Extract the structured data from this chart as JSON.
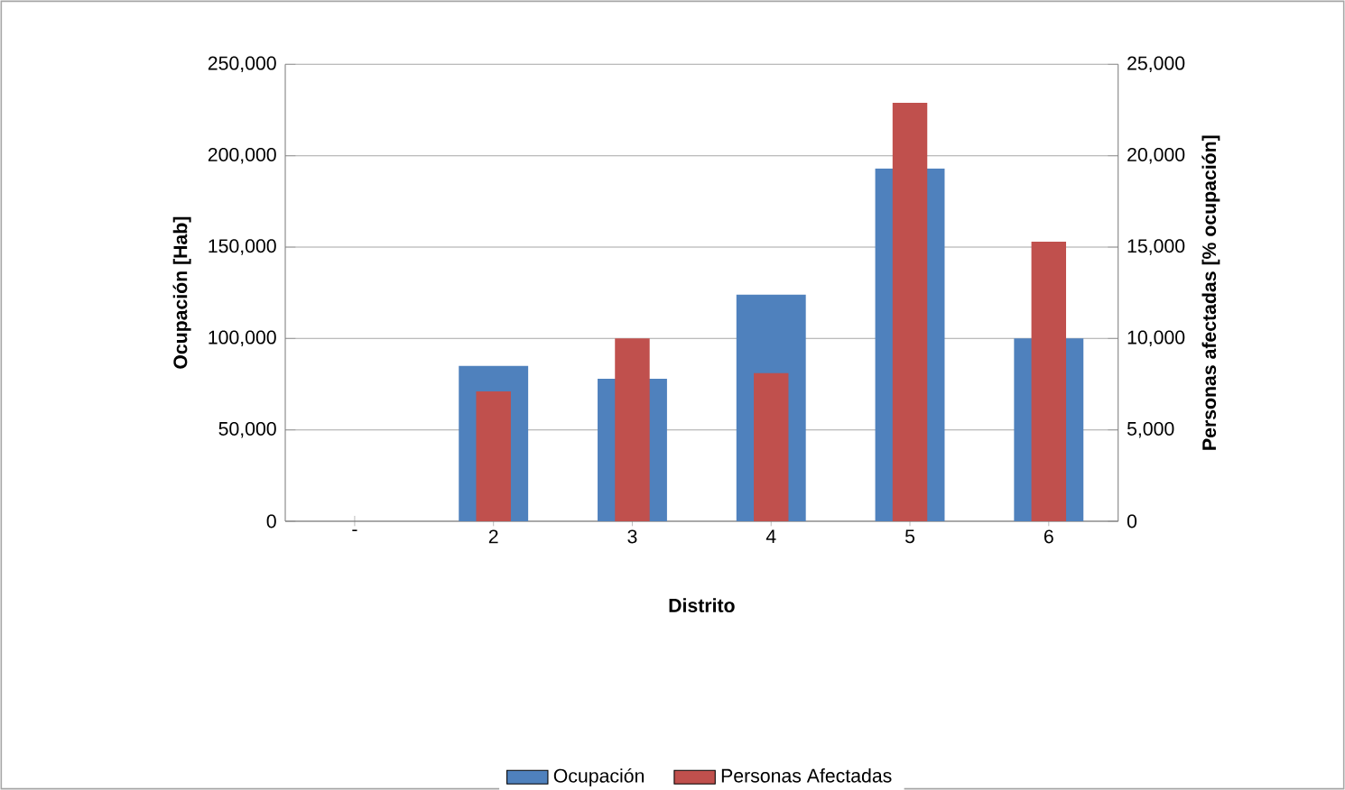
{
  "chart_data": {
    "type": "bar",
    "xlabel": "Distrito",
    "ylabel": "Ocupación  [Hab]",
    "y2label": "Personas afectadas  [% ocupación]",
    "categories": [
      "-",
      "2",
      "3",
      "4",
      "5",
      "6"
    ],
    "series": [
      {
        "name": "Ocupación",
        "color": "#4f81bd",
        "values": [
          0,
          85000,
          78000,
          124000,
          193000,
          100000
        ]
      },
      {
        "name": "Personas Afectadas",
        "color": "#c0504d",
        "axis": "y2",
        "values": [
          0,
          7100,
          10000,
          8100,
          22900,
          15300
        ]
      }
    ],
    "ylim": [
      0,
      250000
    ],
    "yticks": [
      0,
      {
        "value": 50000,
        "label": "50,000"
      },
      {
        "value": 100000,
        "label": "100,000"
      },
      {
        "value": 150000,
        "label": "150,000"
      },
      {
        "value": 200000,
        "label": "200,000"
      },
      {
        "value": 250000,
        "label": "250,000"
      }
    ],
    "y2lim": [
      0,
      25000
    ],
    "y2ticks": [
      0,
      {
        "value": 5000,
        "label": "5,000"
      },
      {
        "value": 10000,
        "label": "10,000"
      },
      {
        "value": 15000,
        "label": "15,000"
      },
      {
        "value": 20000,
        "label": "20,000"
      },
      {
        "value": 25000,
        "label": "25,000"
      }
    ],
    "grid": "y",
    "legend": "bottom"
  }
}
